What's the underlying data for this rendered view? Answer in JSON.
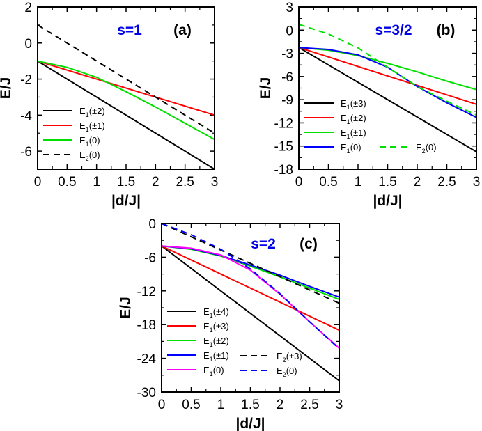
{
  "chart_data": [
    {
      "type": "line",
      "panel_label": "(a)",
      "spin_label": "s=1",
      "xlabel": "|d/J|",
      "ylabel": "E/J",
      "xlim": [
        0,
        3
      ],
      "ylim": [
        -7,
        2
      ],
      "xticks": [
        0,
        0.5,
        1,
        1.5,
        2,
        2.5,
        3
      ],
      "xtick_labels": [
        "0",
        "0.5",
        "1",
        "1.5",
        "2",
        "2.5",
        "3"
      ],
      "yticks": [
        2,
        0,
        -2,
        -4,
        -6
      ],
      "ytick_labels": [
        "2",
        "0",
        "-2",
        "-4",
        "-6"
      ],
      "legend_placement": "bottom-left",
      "series": [
        {
          "name": "E1(±2)",
          "main": "E",
          "sub": "1",
          "arg": "(±2)",
          "color": "#000000",
          "dashed": false,
          "x": [
            0,
            3
          ],
          "y": [
            -1,
            -7
          ]
        },
        {
          "name": "E1(±1)",
          "main": "E",
          "sub": "1",
          "arg": "(±1)",
          "color": "#ff0000",
          "dashed": false,
          "x": [
            0,
            1,
            2,
            3
          ],
          "y": [
            -1,
            -2,
            -3,
            -4
          ]
        },
        {
          "name": "E1(0)",
          "main": "E",
          "sub": "1",
          "arg": "(0)",
          "color": "#00e000",
          "dashed": false,
          "x": [
            0,
            0.5,
            1,
            1.5,
            2,
            2.5,
            3
          ],
          "y": [
            -1,
            -1.35,
            -1.9,
            -2.7,
            -3.55,
            -4.45,
            -5.35
          ]
        },
        {
          "name": "E2(0)",
          "main": "E",
          "sub": "2",
          "arg": "(0)",
          "color": "#000000",
          "dashed": true,
          "x": [
            0,
            3
          ],
          "y": [
            1,
            -5
          ]
        }
      ]
    },
    {
      "type": "line",
      "panel_label": "(b)",
      "spin_label": "s=3/2",
      "xlabel": "|d/J|",
      "ylabel": "E/J",
      "xlim": [
        0,
        3
      ],
      "ylim": [
        -18,
        3
      ],
      "xticks": [
        0,
        0.5,
        1,
        1.5,
        2,
        2.5,
        3
      ],
      "xtick_labels": [
        "0",
        "0.5",
        "1",
        "1.5",
        "2",
        "2.5",
        "3"
      ],
      "yticks": [
        3,
        0,
        -3,
        -6,
        -9,
        -12,
        -15,
        -18
      ],
      "ytick_labels": [
        "3",
        "0",
        "-3",
        "-6",
        "-9",
        "-12",
        "-15",
        "-18"
      ],
      "legend_placement": "bottom-left",
      "series": [
        {
          "name": "E1(±3)",
          "main": "E",
          "sub": "1",
          "arg": "(±3)",
          "color": "#000000",
          "dashed": false,
          "x": [
            0,
            3
          ],
          "y": [
            -2.25,
            -15.75
          ]
        },
        {
          "name": "E1(±2)",
          "main": "E",
          "sub": "1",
          "arg": "(±2)",
          "color": "#ff0000",
          "dashed": false,
          "x": [
            0,
            3
          ],
          "y": [
            -2.25,
            -9.6
          ]
        },
        {
          "name": "E1(±1)",
          "main": "E",
          "sub": "1",
          "arg": "(±1)",
          "color": "#00e000",
          "dashed": false,
          "x": [
            0,
            0.5,
            1,
            1.5,
            2,
            2.5,
            3
          ],
          "y": [
            -2.25,
            -2.6,
            -3.3,
            -4.3,
            -5.4,
            -6.6,
            -7.7
          ]
        },
        {
          "name": "E1(0)",
          "main": "E",
          "sub": "1",
          "arg": "(0)",
          "color": "#0000ff",
          "dashed": false,
          "x": [
            0,
            0.5,
            1,
            1.5,
            2,
            2.5,
            3
          ],
          "y": [
            -2.25,
            -2.5,
            -3.2,
            -4.8,
            -7.3,
            -9.4,
            -11.3
          ]
        },
        {
          "name": "E2(0)",
          "main": "E",
          "sub": "2",
          "arg": "(0)",
          "color": "#00e000",
          "dashed": true,
          "x": [
            0,
            0.5,
            1,
            1.5,
            2,
            2.5,
            3
          ],
          "y": [
            0.75,
            -0.5,
            -2.3,
            -4.8,
            -7.3,
            -9.2,
            -11.0
          ]
        }
      ]
    },
    {
      "type": "line",
      "panel_label": "(c)",
      "spin_label": "s=2",
      "xlabel": "|d/J|",
      "ylabel": "E/J",
      "xlim": [
        0,
        3
      ],
      "ylim": [
        -30,
        0
      ],
      "xticks": [
        0,
        0.5,
        1,
        1.5,
        2,
        2.5,
        3
      ],
      "xtick_labels": [
        "0",
        "0.5",
        "1",
        "1.5",
        "2",
        "2.5",
        "3"
      ],
      "yticks": [
        0,
        -6,
        -12,
        -18,
        -24,
        -30
      ],
      "ytick_labels": [
        "0",
        "-6",
        "-12",
        "-18",
        "-24",
        "-30"
      ],
      "legend_placement": "bottom-left",
      "series": [
        {
          "name": "E1(±4)",
          "main": "E",
          "sub": "1",
          "arg": "(±4)",
          "color": "#000000",
          "dashed": false,
          "x": [
            0,
            3
          ],
          "y": [
            -4,
            -28
          ]
        },
        {
          "name": "E1(±3)",
          "main": "E",
          "sub": "1",
          "arg": "(±3)",
          "color": "#ff0000",
          "dashed": false,
          "x": [
            0,
            3
          ],
          "y": [
            -4,
            -19
          ]
        },
        {
          "name": "E1(±2)",
          "main": "E",
          "sub": "1",
          "arg": "(±2)",
          "color": "#00e000",
          "dashed": false,
          "x": [
            0,
            0.5,
            1,
            1.5,
            2,
            2.5,
            3
          ],
          "y": [
            -4,
            -4.6,
            -5.8,
            -7.6,
            -9.5,
            -11.5,
            -13.5
          ]
        },
        {
          "name": "E1(±1)",
          "main": "E",
          "sub": "1",
          "arg": "(±1)",
          "color": "#0000ff",
          "dashed": false,
          "x": [
            0,
            0.5,
            1,
            1.5,
            2,
            2.5,
            3
          ],
          "y": [
            -4,
            -4.5,
            -5.7,
            -7.4,
            -9.2,
            -11.2,
            -13.1
          ]
        },
        {
          "name": "E1(0)",
          "main": "E",
          "sub": "1",
          "arg": "(0)",
          "color": "#ff00ff",
          "dashed": false,
          "x": [
            0,
            0.5,
            1,
            1.5,
            2,
            2.5,
            3
          ],
          "y": [
            -4,
            -4.4,
            -5.6,
            -8.3,
            -12.6,
            -17.5,
            -22.2
          ]
        },
        {
          "name": "E2(±3)",
          "main": "E",
          "sub": "2",
          "arg": "(±3)",
          "color": "#000000",
          "dashed": true,
          "x": [
            0,
            3
          ],
          "y": [
            0,
            -14.2
          ]
        },
        {
          "name": "E2(0)",
          "main": "E",
          "sub": "2",
          "arg": "(0)",
          "color": "#0000ff",
          "dashed": true,
          "x": [
            0,
            0.5,
            1,
            1.5,
            2,
            2.5,
            3
          ],
          "y": [
            0,
            -2,
            -4.6,
            -8.1,
            -12.5,
            -17.5,
            -22.3
          ]
        }
      ]
    }
  ]
}
